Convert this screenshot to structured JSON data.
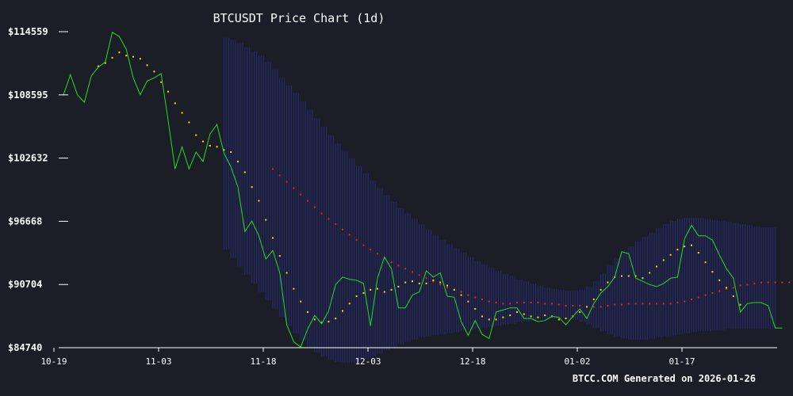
{
  "chart_data": {
    "type": "line",
    "title": "BTCUSDT Price Chart (1d)",
    "footer": "BTCC.COM Generated on 2026-01-26",
    "x_tick_labels": [
      "10-19",
      "11-03",
      "11-18",
      "12-03",
      "12-18",
      "01-02",
      "01-17"
    ],
    "y_tick_labels": [
      "$114559",
      "$108595",
      "$102632",
      "$96668",
      "$90704",
      "$84740"
    ],
    "ylim": [
      84740,
      114559
    ],
    "x_start": "2025-10-19",
    "grid": false,
    "colors": {
      "background": "#1b1d27",
      "price_line": "#22dd22",
      "short_ma": "#ffdd00",
      "long_ma": "#ee2222",
      "bollinger_band": "#2a2f8a",
      "axis": "#ffffff",
      "text": "#ffffff"
    },
    "series": [
      {
        "key": "price",
        "start_day": 0,
        "values": [
          108600,
          110500,
          108600,
          107900,
          110400,
          111200,
          111700,
          114500,
          114100,
          112900,
          110200,
          108600,
          109900,
          110200,
          110600,
          106200,
          101600,
          103700,
          101600,
          103200,
          102300,
          104900,
          105800,
          103100,
          101800,
          99900,
          95700,
          96700,
          95300,
          93100,
          93900,
          91800,
          86900,
          85300,
          84800,
          86500,
          87800,
          87000,
          88200,
          90700,
          91400,
          91200,
          91100,
          90800,
          86800,
          91300,
          93300,
          92200,
          88500,
          88500,
          89700,
          90000,
          92000,
          91400,
          91800,
          89600,
          89500,
          87200,
          85900,
          87300,
          86000,
          85600,
          88100,
          88300,
          88500,
          88500,
          87500,
          87500,
          87200,
          87300,
          87700,
          87600,
          86900,
          87700,
          88400,
          87500,
          88900,
          89900,
          90500,
          91400,
          93800,
          93600,
          91300,
          91000,
          90700,
          90500,
          90800,
          91300,
          91400,
          95000,
          96300,
          95300,
          95300,
          94900,
          93500,
          92200,
          91300,
          88100,
          88900,
          89000,
          89000,
          88700,
          86600,
          86600
        ]
      },
      {
        "key": "short_ma",
        "start_day": 5,
        "values": [
          111300,
          111600,
          112100,
          112600,
          112300,
          112200,
          112000,
          111400,
          110800,
          109800,
          108900,
          107800,
          106900,
          106000,
          104800,
          104200,
          103800,
          103700,
          103400,
          103200,
          102300,
          101300,
          99900,
          98600,
          96800,
          95100,
          93400,
          91800,
          90300,
          89100,
          88100,
          87400,
          87100,
          87200,
          87500,
          88200,
          88900,
          89600,
          89900,
          90200,
          90300,
          90000,
          90200,
          90500,
          90900,
          91000,
          90800,
          90800,
          91100,
          90900,
          90600,
          90200,
          89700,
          89100,
          88400,
          87700,
          87400,
          87400,
          87600,
          87800,
          88100,
          87900,
          87700,
          87600,
          87800,
          87700,
          87400,
          87500,
          87700,
          88100,
          88600,
          89300,
          90200,
          90900,
          91400,
          91500,
          91500,
          91500,
          91300,
          91800,
          92400,
          93000,
          93500,
          94000,
          94300,
          94400,
          93700,
          92800,
          91900,
          91100,
          90400,
          89600,
          88800
        ]
      },
      {
        "key": "long_ma",
        "start_day": 30,
        "values": [
          101600,
          101000,
          100400,
          99800,
          99200,
          98600,
          98000,
          97400,
          96900,
          96400,
          95900,
          95400,
          94900,
          94400,
          94000,
          93600,
          93200,
          92800,
          92500,
          92200,
          91900,
          91600,
          91300,
          91000,
          90700,
          90400,
          90200,
          90000,
          89700,
          89500,
          89300,
          89100,
          89000,
          88900,
          88900,
          89000,
          89000,
          89000,
          89000,
          88900,
          88900,
          88800,
          88700,
          88700,
          88700,
          88600,
          88600,
          88600,
          88700,
          88800,
          88800,
          88900,
          88900,
          88900,
          88900,
          88900,
          88900,
          88900,
          89000,
          89100,
          89300,
          89500,
          89700,
          89900,
          90100,
          90300,
          90400,
          90600,
          90700,
          90800,
          90900,
          90900,
          90900,
          90900,
          90900
        ]
      },
      {
        "key": "band",
        "start_day": 23,
        "upper": [
          114000,
          113800,
          113500,
          113100,
          112700,
          112300,
          111700,
          111000,
          110200,
          109500,
          108800,
          108000,
          107200,
          106400,
          105600,
          104800,
          104000,
          103300,
          102600,
          101900,
          101200,
          100500,
          99800,
          99100,
          98500,
          97900,
          97400,
          96900,
          96400,
          95900,
          95400,
          94900,
          94500,
          94100,
          93700,
          93300,
          92900,
          92600,
          92300,
          92000,
          91700,
          91500,
          91200,
          91000,
          90800,
          90600,
          90400,
          90300,
          90200,
          90100,
          90100,
          90200,
          90500,
          91000,
          91700,
          92500,
          93200,
          93800,
          94300,
          94800,
          95200,
          95600,
          96000,
          96400,
          96700,
          96900,
          97000,
          97000,
          97000,
          96900,
          96800,
          96700,
          96600,
          96500,
          96400,
          96300,
          96200,
          96100,
          96100,
          96100,
          96100
        ],
        "lower": [
          94000,
          93200,
          92400,
          91600,
          90800,
          90000,
          89200,
          88400,
          87600,
          86800,
          86100,
          85400,
          84800,
          84300,
          83900,
          83600,
          83400,
          83300,
          83300,
          83400,
          83600,
          83900,
          84200,
          84500,
          84800,
          85100,
          85300,
          85500,
          85700,
          85800,
          85900,
          86000,
          86100,
          86200,
          86300,
          86400,
          86500,
          86600,
          86700,
          86800,
          86900,
          87000,
          87100,
          87200,
          87300,
          87400,
          87500,
          87500,
          87500,
          87500,
          87400,
          87200,
          86900,
          86600,
          86300,
          86000,
          85800,
          85600,
          85500,
          85500,
          85500,
          85600,
          85700,
          85800,
          85900,
          86000,
          86100,
          86200,
          86300,
          86300,
          86400,
          86400,
          86500,
          86500,
          86500,
          86500,
          86500,
          86500,
          86500,
          86500,
          86500
        ]
      }
    ]
  }
}
